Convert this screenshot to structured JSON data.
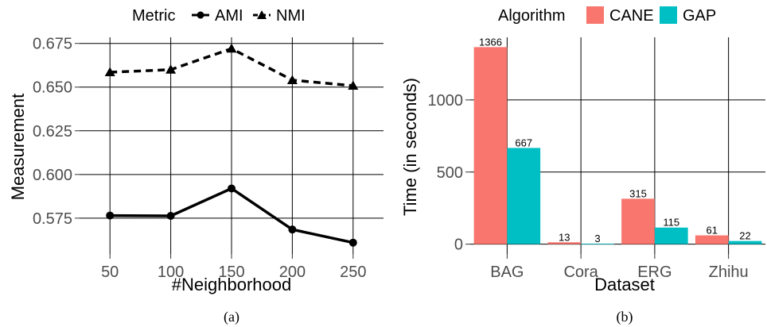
{
  "chart_data": [
    {
      "type": "line",
      "legend": {
        "title": "Metric",
        "placement": "top",
        "items": [
          "AMI",
          "NMI"
        ]
      },
      "x": [
        50,
        100,
        150,
        200,
        250
      ],
      "series": [
        {
          "name": "AMI",
          "values": [
            0.5765,
            0.5763,
            0.592,
            0.5685,
            0.561
          ],
          "style": "solid",
          "marker": "circle"
        },
        {
          "name": "NMI",
          "values": [
            0.6585,
            0.66,
            0.672,
            0.654,
            0.6508
          ],
          "style": "dashed",
          "marker": "triangle"
        }
      ],
      "xlabel": "#Neighborhood",
      "ylabel": "Measurement",
      "xlim": [
        25,
        275
      ],
      "ylim": [
        0.5545,
        0.6785
      ],
      "xticks": [
        "50",
        "100",
        "150",
        "200",
        "250"
      ],
      "yticks": [
        0.575,
        0.6,
        0.625,
        0.65,
        0.675
      ],
      "ytick_labels": [
        "0.575",
        "0.600",
        "0.625",
        "0.650",
        "0.675"
      ],
      "grid": true,
      "caption": "(a)"
    },
    {
      "type": "bar",
      "legend": {
        "title": "Algorithm",
        "placement": "top",
        "items": [
          "CANE",
          "GAP"
        ]
      },
      "categories": [
        "BAG",
        "Cora",
        "ERG",
        "Zhihu"
      ],
      "series": [
        {
          "name": "CANE",
          "values": [
            1366,
            13,
            315,
            61
          ],
          "labels": [
            "1366",
            "13",
            "315",
            "61"
          ],
          "color": "#F8766D"
        },
        {
          "name": "GAP",
          "values": [
            667,
            3,
            115,
            22
          ],
          "labels": [
            "667",
            "3",
            "115",
            "22"
          ],
          "color": "#00BFC4"
        }
      ],
      "xlabel": "Dataset",
      "ylabel": "Time (in seconds)",
      "ylim": [
        -68,
        1434
      ],
      "yticks": [
        0,
        500,
        1000
      ],
      "ytick_labels": [
        "0",
        "500",
        "1000"
      ],
      "grid": true,
      "caption": "(b)"
    }
  ]
}
